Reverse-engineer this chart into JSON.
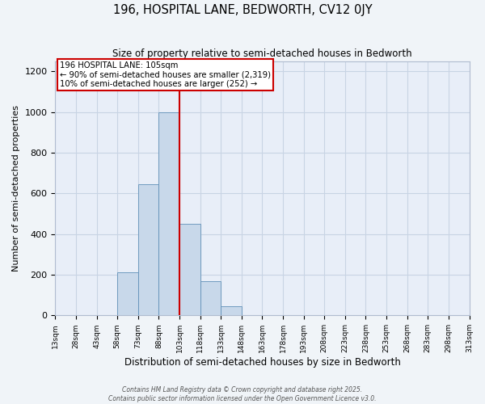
{
  "title1": "196, HOSPITAL LANE, BEDWORTH, CV12 0JY",
  "title2": "Size of property relative to semi-detached houses in Bedworth",
  "xlabel": "Distribution of semi-detached houses by size in Bedworth",
  "ylabel": "Number of semi-detached properties",
  "bar_edges": [
    13,
    28,
    43,
    58,
    73,
    88,
    103,
    118,
    133,
    148,
    163,
    178,
    193,
    208,
    223,
    238,
    253,
    268,
    283,
    298,
    313
  ],
  "bar_heights": [
    0,
    0,
    0,
    210,
    645,
    1000,
    450,
    170,
    45,
    0,
    0,
    0,
    0,
    0,
    0,
    0,
    0,
    0,
    0,
    0
  ],
  "bar_color": "#c8d8ea",
  "bar_edgecolor": "#6090b8",
  "vline_x": 103,
  "vline_color": "#cc0000",
  "annotation_title": "196 HOSPITAL LANE: 105sqm",
  "annotation_line1": "← 90% of semi-detached houses are smaller (2,319)",
  "annotation_line2": "10% of semi-detached houses are larger (252) →",
  "annotation_box_color": "#cc0000",
  "ylim": [
    0,
    1250
  ],
  "yticks": [
    0,
    200,
    400,
    600,
    800,
    1000,
    1200
  ],
  "grid_color": "#c8d4e4",
  "bg_color": "#e8eef8",
  "fig_bg_color": "#f0f4f8",
  "footer1": "Contains HM Land Registry data © Crown copyright and database right 2025.",
  "footer2": "Contains public sector information licensed under the Open Government Licence v3.0."
}
